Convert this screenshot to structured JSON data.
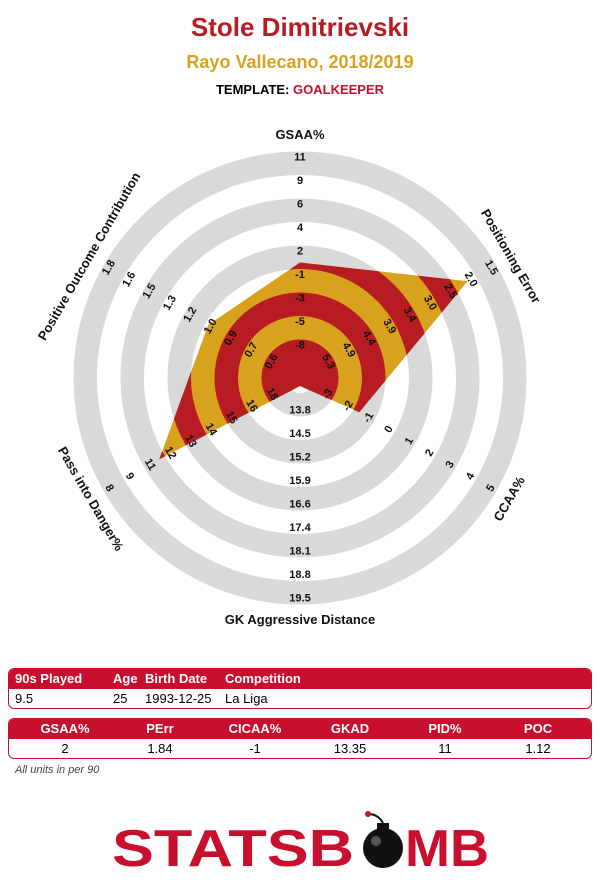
{
  "header": {
    "title": "Stole Dimitrievski",
    "subtitle": "Rayo Vallecano, 2018/2019",
    "template_label": "TEMPLATE:",
    "template_value": "GOALKEEPER"
  },
  "chart_data": {
    "type": "radar",
    "title": "Stole Dimitrievski",
    "axes": [
      {
        "name": "GSAA%",
        "ticks": [
          "-8",
          "-5",
          "-3",
          "-1",
          "2",
          "4",
          "6",
          "9",
          "11"
        ],
        "value": 2
      },
      {
        "name": "Positioning Error",
        "ticks": [
          "5.3",
          "4.9",
          "4.4",
          "3.9",
          "3.4",
          "3.0",
          "2.5",
          "2.0",
          "1.5"
        ],
        "value": 1.84
      },
      {
        "name": "CCAA%",
        "ticks": [
          "-3",
          "-2",
          "-1",
          "0",
          "1",
          "2",
          "3",
          "4",
          "5"
        ],
        "value": -1
      },
      {
        "name": "GK Aggressive Distance",
        "ticks": [
          "13.8",
          "14.5",
          "15.2",
          "15.9",
          "16.6",
          "17.4",
          "18.1",
          "18.8",
          "19.5"
        ],
        "value": 13.35
      },
      {
        "name": "Pass into Danger%",
        "ticks": [
          "18",
          "16",
          "15",
          "14",
          "13",
          "12",
          "11",
          "9",
          "8"
        ],
        "value": 11
      },
      {
        "name": "Positive Outcome Contribution",
        "ticks": [
          "0.6",
          "0.7",
          "0.9",
          "1.0",
          "1.2",
          "1.3",
          "1.5",
          "1.6",
          "1.8"
        ],
        "value": 1.12
      }
    ],
    "colors": {
      "ring_gray": "#d9d9d9",
      "polygon_red": "#b71c23",
      "polygon_gold": "#d9a21e"
    }
  },
  "info_table": {
    "headers": [
      "90s Played",
      "Age",
      "Birth Date",
      "Competition"
    ],
    "values": [
      "9.5",
      "25",
      "1993-12-25",
      "La Liga"
    ]
  },
  "stats_table": {
    "headers": [
      "GSAA%",
      "PErr",
      "CICAA%",
      "GKAD",
      "PID%",
      "POC"
    ],
    "values": [
      "2",
      "1.84",
      "-1",
      "13.35",
      "11",
      "1.12"
    ]
  },
  "footnote": "All units in per 90",
  "logo": {
    "left": "STATSB",
    "bomb": "O",
    "right": "MB"
  },
  "colors": {
    "accent": "#c8102e",
    "title": "#b71c23",
    "gold": "#d9a21e"
  }
}
